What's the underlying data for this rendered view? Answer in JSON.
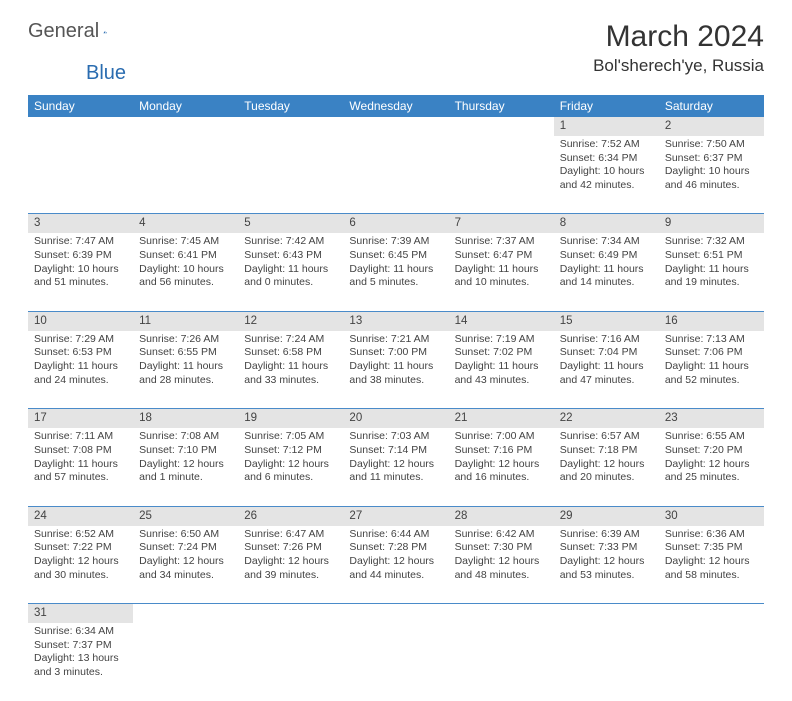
{
  "logo": {
    "text1": "General",
    "text2": "Blue"
  },
  "title": "March 2024",
  "location": "Bol'sherech'ye, Russia",
  "colors": {
    "header_bg": "#3a82c4",
    "header_text": "#ffffff",
    "daynum_bg": "#e4e4e4",
    "text": "#434343",
    "row_border": "#4a8bc9",
    "logo_blue": "#2a6cb0"
  },
  "weekdays": [
    "Sunday",
    "Monday",
    "Tuesday",
    "Wednesday",
    "Thursday",
    "Friday",
    "Saturday"
  ],
  "weeks": [
    [
      null,
      null,
      null,
      null,
      null,
      {
        "n": "1",
        "sr": "7:52 AM",
        "ss": "6:34 PM",
        "dl": "10 hours and 42 minutes."
      },
      {
        "n": "2",
        "sr": "7:50 AM",
        "ss": "6:37 PM",
        "dl": "10 hours and 46 minutes."
      }
    ],
    [
      {
        "n": "3",
        "sr": "7:47 AM",
        "ss": "6:39 PM",
        "dl": "10 hours and 51 minutes."
      },
      {
        "n": "4",
        "sr": "7:45 AM",
        "ss": "6:41 PM",
        "dl": "10 hours and 56 minutes."
      },
      {
        "n": "5",
        "sr": "7:42 AM",
        "ss": "6:43 PM",
        "dl": "11 hours and 0 minutes."
      },
      {
        "n": "6",
        "sr": "7:39 AM",
        "ss": "6:45 PM",
        "dl": "11 hours and 5 minutes."
      },
      {
        "n": "7",
        "sr": "7:37 AM",
        "ss": "6:47 PM",
        "dl": "11 hours and 10 minutes."
      },
      {
        "n": "8",
        "sr": "7:34 AM",
        "ss": "6:49 PM",
        "dl": "11 hours and 14 minutes."
      },
      {
        "n": "9",
        "sr": "7:32 AM",
        "ss": "6:51 PM",
        "dl": "11 hours and 19 minutes."
      }
    ],
    [
      {
        "n": "10",
        "sr": "7:29 AM",
        "ss": "6:53 PM",
        "dl": "11 hours and 24 minutes."
      },
      {
        "n": "11",
        "sr": "7:26 AM",
        "ss": "6:55 PM",
        "dl": "11 hours and 28 minutes."
      },
      {
        "n": "12",
        "sr": "7:24 AM",
        "ss": "6:58 PM",
        "dl": "11 hours and 33 minutes."
      },
      {
        "n": "13",
        "sr": "7:21 AM",
        "ss": "7:00 PM",
        "dl": "11 hours and 38 minutes."
      },
      {
        "n": "14",
        "sr": "7:19 AM",
        "ss": "7:02 PM",
        "dl": "11 hours and 43 minutes."
      },
      {
        "n": "15",
        "sr": "7:16 AM",
        "ss": "7:04 PM",
        "dl": "11 hours and 47 minutes."
      },
      {
        "n": "16",
        "sr": "7:13 AM",
        "ss": "7:06 PM",
        "dl": "11 hours and 52 minutes."
      }
    ],
    [
      {
        "n": "17",
        "sr": "7:11 AM",
        "ss": "7:08 PM",
        "dl": "11 hours and 57 minutes."
      },
      {
        "n": "18",
        "sr": "7:08 AM",
        "ss": "7:10 PM",
        "dl": "12 hours and 1 minute."
      },
      {
        "n": "19",
        "sr": "7:05 AM",
        "ss": "7:12 PM",
        "dl": "12 hours and 6 minutes."
      },
      {
        "n": "20",
        "sr": "7:03 AM",
        "ss": "7:14 PM",
        "dl": "12 hours and 11 minutes."
      },
      {
        "n": "21",
        "sr": "7:00 AM",
        "ss": "7:16 PM",
        "dl": "12 hours and 16 minutes."
      },
      {
        "n": "22",
        "sr": "6:57 AM",
        "ss": "7:18 PM",
        "dl": "12 hours and 20 minutes."
      },
      {
        "n": "23",
        "sr": "6:55 AM",
        "ss": "7:20 PM",
        "dl": "12 hours and 25 minutes."
      }
    ],
    [
      {
        "n": "24",
        "sr": "6:52 AM",
        "ss": "7:22 PM",
        "dl": "12 hours and 30 minutes."
      },
      {
        "n": "25",
        "sr": "6:50 AM",
        "ss": "7:24 PM",
        "dl": "12 hours and 34 minutes."
      },
      {
        "n": "26",
        "sr": "6:47 AM",
        "ss": "7:26 PM",
        "dl": "12 hours and 39 minutes."
      },
      {
        "n": "27",
        "sr": "6:44 AM",
        "ss": "7:28 PM",
        "dl": "12 hours and 44 minutes."
      },
      {
        "n": "28",
        "sr": "6:42 AM",
        "ss": "7:30 PM",
        "dl": "12 hours and 48 minutes."
      },
      {
        "n": "29",
        "sr": "6:39 AM",
        "ss": "7:33 PM",
        "dl": "12 hours and 53 minutes."
      },
      {
        "n": "30",
        "sr": "6:36 AM",
        "ss": "7:35 PM",
        "dl": "12 hours and 58 minutes."
      }
    ],
    [
      {
        "n": "31",
        "sr": "6:34 AM",
        "ss": "7:37 PM",
        "dl": "13 hours and 3 minutes."
      },
      null,
      null,
      null,
      null,
      null,
      null
    ]
  ],
  "labels": {
    "sunrise": "Sunrise:",
    "sunset": "Sunset:",
    "daylight": "Daylight:"
  }
}
